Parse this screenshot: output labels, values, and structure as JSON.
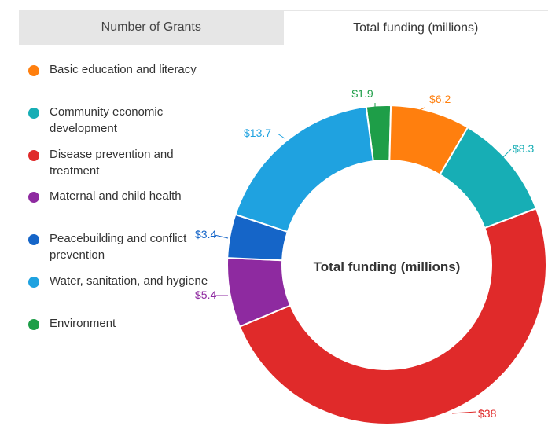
{
  "tabs": [
    {
      "label": "Number of Grants",
      "active": false
    },
    {
      "label": "Total funding (millions)",
      "active": true
    }
  ],
  "chart_data": {
    "type": "pie",
    "title": "Total funding (millions)",
    "categories": [
      "Environment",
      "Basic education and literacy",
      "Community economic development",
      "Disease prevention and treatment",
      "Maternal and child health",
      "Peacebuilding and conflict prevention",
      "Water, sanitation, and hygiene"
    ],
    "values": [
      1.9,
      6.2,
      8.3,
      38,
      5.4,
      3.4,
      13.7
    ],
    "data_labels": [
      "$1.9",
      "$6.2",
      "$8.3",
      "$38",
      "$5.4",
      "$3.4",
      "$13.7"
    ],
    "colors": [
      "#1e9e48",
      "#ff7f0e",
      "#17aeb5",
      "#e02a2a",
      "#8e2aa0",
      "#1565c8",
      "#1fa2e0"
    ],
    "legend": [
      {
        "label": "Basic education and literacy",
        "color": "#ff7f0e"
      },
      {
        "label": "Community economic development",
        "color": "#17aeb5"
      },
      {
        "label": "Disease prevention and treatment",
        "color": "#e02a2a"
      },
      {
        "label": "Maternal and child health",
        "color": "#8e2aa0"
      },
      {
        "label": "Peacebuilding and conflict prevention",
        "color": "#1565c8"
      },
      {
        "label": "Water, sanitation, and hygiene",
        "color": "#1fa2e0"
      },
      {
        "label": "Environment",
        "color": "#1e9e48"
      }
    ],
    "legend_position": "left",
    "donut": true
  }
}
